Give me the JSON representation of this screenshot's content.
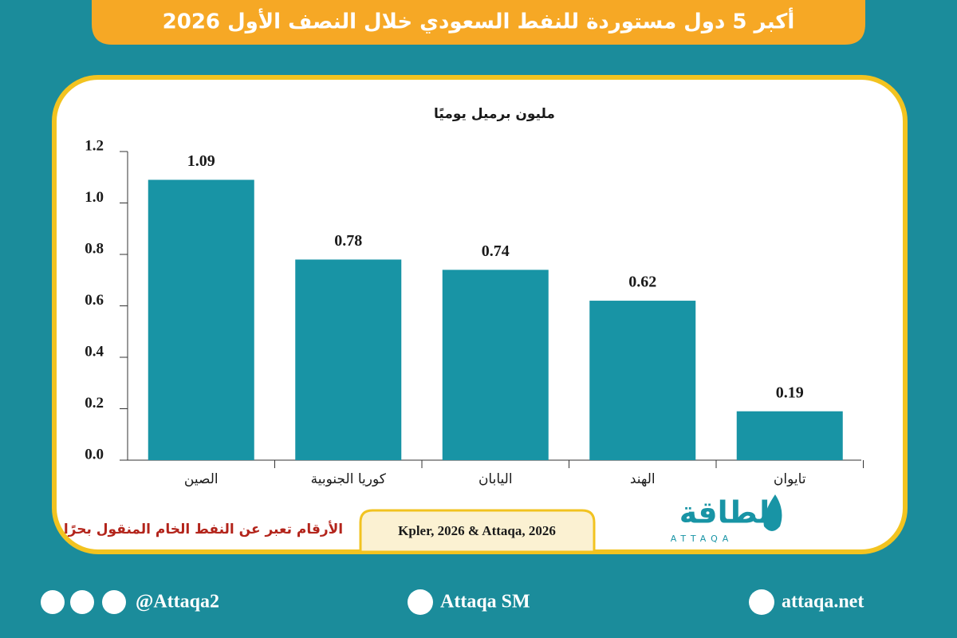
{
  "chart_data": {
    "type": "bar",
    "title": "أكبر 5 دول مستوردة للنفط السعودي خلال النصف الأول 2026",
    "subtitle": "مليون برميل يوميًا",
    "categories": [
      "الصين",
      "كوريا الجنوبية",
      "اليابان",
      "الهند",
      "تايوان"
    ],
    "values": [
      1.09,
      0.78,
      0.74,
      0.62,
      0.19
    ],
    "color": "#1894a5",
    "ylim": [
      0,
      1.2
    ],
    "yticks": [
      {
        "value": 0,
        "label": "0.0"
      },
      0.2,
      0.4,
      0.6,
      0.8,
      {
        "value": 1,
        "label": "1.0"
      },
      1.2
    ],
    "grid": false,
    "note": "الأرقام تعبر عن النفط الخام المنقول بحرًا",
    "source": "Kpler, 2026 & Attaqa, 2026"
  },
  "branding": {
    "logo": "الطاقة",
    "logo_latin": "ATTAQA",
    "footer": [
      "@Attaqa2",
      "Attaqa SM",
      "attaqa.net"
    ]
  }
}
